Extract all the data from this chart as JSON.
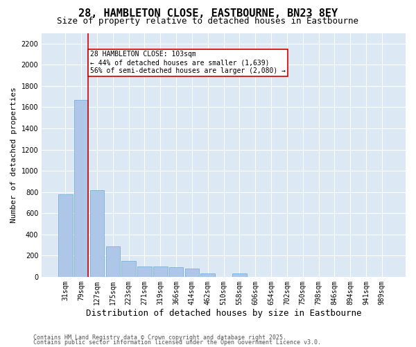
{
  "title": "28, HAMBLETON CLOSE, EASTBOURNE, BN23 8EY",
  "subtitle": "Size of property relative to detached houses in Eastbourne",
  "xlabel": "Distribution of detached houses by size in Eastbourne",
  "ylabel": "Number of detached properties",
  "bar_color": "#aec6e8",
  "bar_edge_color": "#6aaad4",
  "bg_color": "#dce9f5",
  "grid_color": "#ffffff",
  "categories": [
    "31sqm",
    "79sqm",
    "127sqm",
    "175sqm",
    "223sqm",
    "271sqm",
    "319sqm",
    "366sqm",
    "414sqm",
    "462sqm",
    "510sqm",
    "558sqm",
    "606sqm",
    "654sqm",
    "702sqm",
    "750sqm",
    "798sqm",
    "846sqm",
    "894sqm",
    "941sqm",
    "989sqm"
  ],
  "values": [
    780,
    1670,
    820,
    290,
    150,
    100,
    100,
    90,
    75,
    30,
    0,
    30,
    0,
    0,
    0,
    0,
    0,
    0,
    0,
    0,
    0
  ],
  "ylim": [
    0,
    2300
  ],
  "yticks": [
    0,
    200,
    400,
    600,
    800,
    1000,
    1200,
    1400,
    1600,
    1800,
    2000,
    2200
  ],
  "vline_color": "#cc0000",
  "annotation_text": "28 HAMBLETON CLOSE: 103sqm\n← 44% of detached houses are smaller (1,639)\n56% of semi-detached houses are larger (2,080) →",
  "footer1": "Contains HM Land Registry data © Crown copyright and database right 2025.",
  "footer2": "Contains public sector information licensed under the Open Government Licence v3.0.",
  "title_fontsize": 11,
  "subtitle_fontsize": 9,
  "xlabel_fontsize": 9,
  "ylabel_fontsize": 8,
  "tick_fontsize": 7,
  "annotation_fontsize": 7,
  "footer_fontsize": 6
}
